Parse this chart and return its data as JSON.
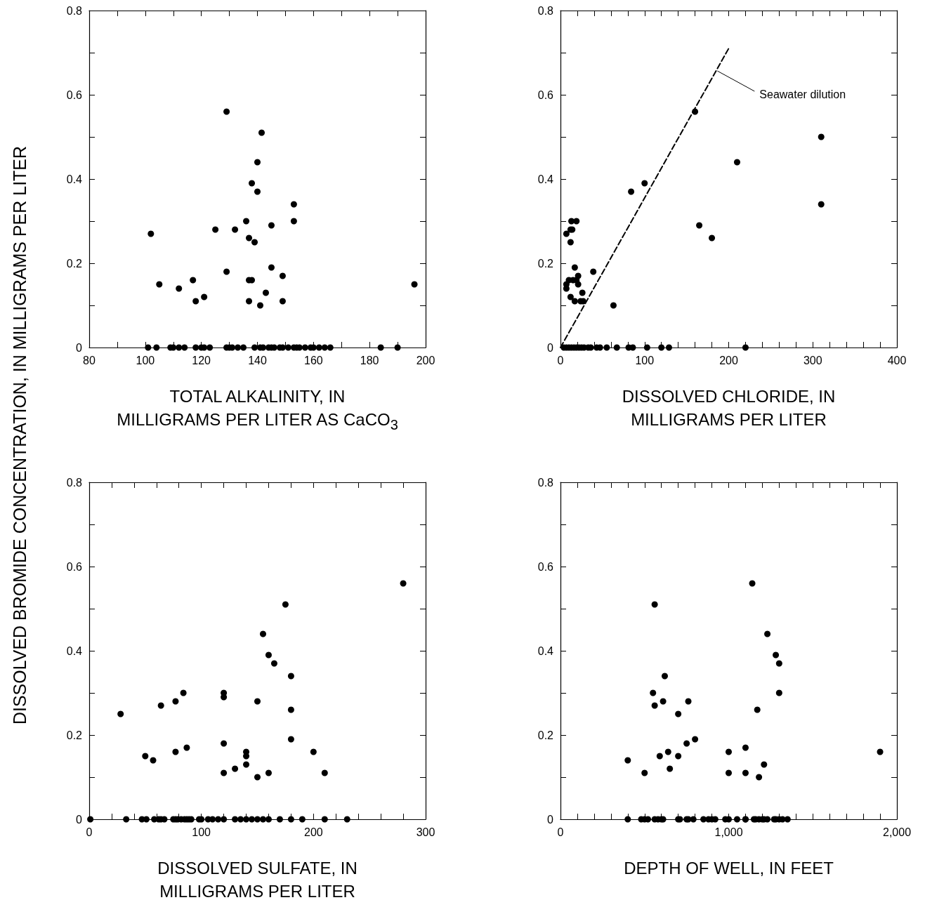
{
  "chart_data": [
    {
      "type": "scatter",
      "ylabel": "DISSOLVED BROMIDE CONCENTRATION, IN MILLIGRAMS PER LITER",
      "xlabel": "TOTAL ALKALINITY, IN\nMILLIGRAMS PER LITER AS CaCO$_{3}$",
      "xlim": [
        80,
        200
      ],
      "xticks": [
        80,
        {
          "value": 90,
          "label": null
        },
        100,
        {
          "value": 110,
          "label": null
        },
        120,
        {
          "value": 130,
          "label": null
        },
        140,
        {
          "value": 150,
          "label": null
        },
        160,
        {
          "value": 170,
          "label": null
        },
        180,
        {
          "value": 190,
          "label": null
        },
        200
      ],
      "ylim": [
        0,
        0.8
      ],
      "yticks": [
        0,
        {
          "value": 0.1,
          "label": null
        },
        0.2,
        {
          "value": 0.3,
          "label": null
        },
        0.4,
        {
          "value": 0.5,
          "label": null
        },
        0.6,
        {
          "value": 0.7,
          "label": null
        },
        0.8
      ],
      "marker": "circle",
      "series": [
        {
          "type": "scatter",
          "color": "#000000",
          "x": [
            102,
            105,
            112,
            117,
            118,
            121,
            125,
            129,
            129,
            132,
            136,
            137,
            137,
            138,
            137,
            138,
            139,
            140,
            140,
            141,
            141.5,
            143,
            145,
            145,
            149,
            149,
            153,
            153,
            196,
            101,
            104,
            109,
            110,
            112,
            114,
            118,
            120,
            121,
            123,
            129,
            130,
            131,
            133,
            135,
            139,
            141,
            142,
            144,
            145,
            146,
            148,
            149,
            151,
            153,
            154,
            155,
            157,
            159,
            160,
            162,
            164,
            166,
            184,
            190
          ],
          "values": [
            0.27,
            0.15,
            0.14,
            0.16,
            0.11,
            0.12,
            0.28,
            0.56,
            0.18,
            0.28,
            0.3,
            0.26,
            0.16,
            0.16,
            0.11,
            0.39,
            0.25,
            0.44,
            0.37,
            0.1,
            0.51,
            0.13,
            0.29,
            0.19,
            0.17,
            0.11,
            0.34,
            0.3,
            0.15,
            0,
            0,
            0,
            0,
            0,
            0,
            0,
            0,
            0,
            0,
            0,
            0,
            0,
            0,
            0,
            0,
            0,
            0,
            0,
            0,
            0,
            0,
            0,
            0,
            0,
            0,
            0,
            0,
            0,
            0,
            0,
            0,
            0,
            0,
            0
          ]
        }
      ]
    },
    {
      "type": "scatter",
      "xlabel": "DISSOLVED CHLORIDE, IN\nMILLIGRAMS PER LITER",
      "xlim": [
        0,
        400
      ],
      "xticks": [
        0,
        {
          "value": 20,
          "label": null
        },
        {
          "value": 40,
          "label": null
        },
        {
          "value": 60,
          "label": null
        },
        {
          "value": 80,
          "label": null
        },
        100,
        {
          "value": 120,
          "label": null
        },
        {
          "value": 140,
          "label": null
        },
        {
          "value": 160,
          "label": null
        },
        {
          "value": 180,
          "label": null
        },
        200,
        {
          "value": 220,
          "label": null
        },
        {
          "value": 240,
          "label": null
        },
        {
          "value": 260,
          "label": null
        },
        {
          "value": 280,
          "label": null
        },
        300,
        {
          "value": 320,
          "label": null
        },
        {
          "value": 340,
          "label": null
        },
        {
          "value": 360,
          "label": null
        },
        {
          "value": 380,
          "label": null
        },
        400
      ],
      "ylim": [
        0,
        0.8
      ],
      "yticks": [
        0,
        {
          "value": 0.1,
          "label": null
        },
        0.2,
        {
          "value": 0.3,
          "label": null
        },
        0.4,
        {
          "value": 0.5,
          "label": null
        },
        0.6,
        {
          "value": 0.7,
          "label": null
        },
        0.8
      ],
      "marker": "circle",
      "annotations": [
        {
          "text": "Seawater dilution",
          "x": 184,
          "y": 0.66
        }
      ],
      "series": [
        {
          "type": "line",
          "color": "#000000",
          "line_style": "dashed",
          "marker": "none",
          "x": [
            0,
            200
          ],
          "values": [
            0,
            0.71
          ]
        },
        {
          "type": "scatter",
          "color": "#000000",
          "x": [
            7,
            7,
            7,
            12,
            12,
            13,
            14,
            19,
            10,
            15,
            17,
            19,
            21,
            21,
            12,
            17,
            24,
            27,
            26,
            39,
            63,
            84,
            100,
            160,
            165,
            180,
            210,
            310,
            310,
            4,
            7,
            10,
            13,
            16,
            19,
            22,
            25,
            28,
            33,
            36,
            43,
            47,
            55,
            67,
            81,
            86,
            103,
            120,
            129,
            220
          ],
          "values": [
            0.15,
            0.14,
            0.27,
            0.28,
            0.25,
            0.3,
            0.28,
            0.3,
            0.16,
            0.16,
            0.19,
            0.16,
            0.17,
            0.15,
            0.12,
            0.11,
            0.11,
            0.11,
            0.13,
            0.18,
            0.1,
            0.37,
            0.39,
            0.56,
            0.29,
            0.26,
            0.44,
            0.5,
            0.34,
            0,
            0,
            0,
            0,
            0,
            0,
            0,
            0,
            0,
            0,
            0,
            0,
            0,
            0,
            0,
            0,
            0,
            0,
            0,
            0,
            0
          ]
        }
      ]
    },
    {
      "type": "scatter",
      "xlabel": "DISSOLVED SULFATE, IN\nMILLIGRAMS PER LITER",
      "xlim": [
        0,
        300
      ],
      "xticks": [
        0,
        {
          "value": 20,
          "label": null
        },
        {
          "value": 40,
          "label": null
        },
        {
          "value": 60,
          "label": null
        },
        {
          "value": 80,
          "label": null
        },
        100,
        {
          "value": 120,
          "label": null
        },
        {
          "value": 140,
          "label": null
        },
        {
          "value": 160,
          "label": null
        },
        {
          "value": 180,
          "label": null
        },
        200,
        {
          "value": 220,
          "label": null
        },
        {
          "value": 240,
          "label": null
        },
        {
          "value": 260,
          "label": null
        },
        {
          "value": 280,
          "label": null
        },
        300
      ],
      "ylim": [
        0,
        0.8
      ],
      "yticks": [
        0,
        {
          "value": 0.1,
          "label": null
        },
        0.2,
        {
          "value": 0.3,
          "label": null
        },
        0.4,
        {
          "value": 0.5,
          "label": null
        },
        0.6,
        {
          "value": 0.7,
          "label": null
        },
        0.8
      ],
      "marker": "circle",
      "series": [
        {
          "type": "scatter",
          "color": "#000000",
          "x": [
            28,
            50,
            57,
            64,
            77,
            77,
            84,
            87,
            120,
            120,
            120,
            120,
            130,
            140,
            140,
            140,
            150,
            150,
            155,
            160,
            160,
            165,
            175,
            180,
            180,
            180,
            200,
            210,
            280,
            1,
            33,
            47,
            51,
            58,
            62,
            64,
            67,
            75,
            77,
            79,
            82,
            85,
            87,
            89,
            91,
            98,
            100,
            106,
            110,
            115,
            120,
            130,
            135,
            140,
            145,
            150,
            155,
            160,
            170,
            180,
            190,
            210,
            230
          ],
          "values": [
            0.25,
            0.15,
            0.14,
            0.27,
            0.28,
            0.16,
            0.3,
            0.17,
            0.3,
            0.29,
            0.18,
            0.11,
            0.12,
            0.16,
            0.15,
            0.13,
            0.28,
            0.1,
            0.44,
            0.39,
            0.11,
            0.37,
            0.51,
            0.34,
            0.26,
            0.19,
            0.16,
            0.11,
            0.56,
            0,
            0,
            0,
            0,
            0,
            0,
            0,
            0,
            0,
            0,
            0,
            0,
            0,
            0,
            0,
            0,
            0,
            0,
            0,
            0,
            0,
            0,
            0,
            0,
            0,
            0,
            0,
            0,
            0,
            0,
            0,
            0,
            0,
            0
          ]
        }
      ]
    },
    {
      "type": "scatter",
      "xlabel": "DEPTH OF WELL, IN FEET",
      "xlim": [
        0,
        2000
      ],
      "xticks": [
        0,
        {
          "value": 100,
          "label": null
        },
        {
          "value": 200,
          "label": null
        },
        {
          "value": 300,
          "label": null
        },
        {
          "value": 400,
          "label": null
        },
        {
          "value": 500,
          "label": null
        },
        {
          "value": 600,
          "label": null
        },
        {
          "value": 700,
          "label": null
        },
        {
          "value": 800,
          "label": null
        },
        {
          "value": 900,
          "label": null
        },
        {
          "value": 1000,
          "label": "1,000"
        },
        {
          "value": 1100,
          "label": null
        },
        {
          "value": 1200,
          "label": null
        },
        {
          "value": 1300,
          "label": null
        },
        {
          "value": 1400,
          "label": null
        },
        {
          "value": 1500,
          "label": null
        },
        {
          "value": 1600,
          "label": null
        },
        {
          "value": 1700,
          "label": null
        },
        {
          "value": 1800,
          "label": null
        },
        {
          "value": 1900,
          "label": null
        },
        {
          "value": 2000,
          "label": "2,000"
        }
      ],
      "ylim": [
        0,
        0.8
      ],
      "yticks": [
        0,
        {
          "value": 0.1,
          "label": null
        },
        0.2,
        {
          "value": 0.3,
          "label": null
        },
        0.4,
        {
          "value": 0.5,
          "label": null
        },
        0.6,
        {
          "value": 0.7,
          "label": null
        },
        0.8
      ],
      "marker": "circle",
      "series": [
        {
          "type": "scatter",
          "color": "#000000",
          "x": [
            400,
            500,
            550,
            560,
            560,
            590,
            610,
            620,
            640,
            650,
            700,
            700,
            750,
            760,
            800,
            1000,
            1000,
            1100,
            1100,
            1140,
            1170,
            1180,
            1210,
            1230,
            1280,
            1300,
            1300,
            1900,
            400,
            480,
            500,
            520,
            560,
            580,
            600,
            610,
            700,
            710,
            750,
            760,
            790,
            850,
            880,
            900,
            920,
            980,
            1000,
            1050,
            1100,
            1100,
            1150,
            1160,
            1180,
            1200,
            1210,
            1230,
            1270,
            1280,
            1300,
            1320,
            1350
          ],
          "values": [
            0.14,
            0.11,
            0.3,
            0.51,
            0.27,
            0.15,
            0.28,
            0.34,
            0.16,
            0.12,
            0.25,
            0.15,
            0.18,
            0.28,
            0.19,
            0.16,
            0.11,
            0.11,
            0.17,
            0.56,
            0.26,
            0.1,
            0.13,
            0.44,
            0.39,
            0.37,
            0.3,
            0.16,
            0,
            0,
            0,
            0,
            0,
            0,
            0,
            0,
            0,
            0,
            0,
            0,
            0,
            0,
            0,
            0,
            0,
            0,
            0,
            0,
            0,
            0,
            0,
            0,
            0,
            0,
            0,
            0,
            0,
            0,
            0,
            0,
            0
          ]
        }
      ]
    }
  ]
}
